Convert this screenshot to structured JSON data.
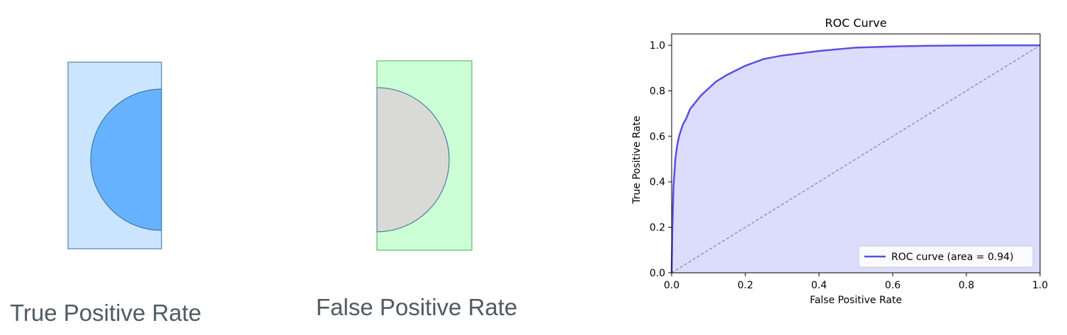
{
  "panels": {
    "tpr": {
      "caption": "True Positive Rate",
      "rect_fill": "#cce5ff",
      "rect_stroke": "#2e6f96",
      "half_fill": "#66b2ff",
      "half_stroke": "#2e6f96"
    },
    "fpr": {
      "caption": "False Positive Rate",
      "rect_fill": "#ccffd6",
      "rect_stroke": "#4aa84a",
      "half_fill": "#d9d9d6",
      "half_stroke": "#2e6f96"
    }
  },
  "chart_data": {
    "type": "line",
    "title": "ROC Curve",
    "xlabel": "False Positive Rate",
    "ylabel": "True Positive Rate",
    "xlim": [
      0.0,
      1.0
    ],
    "ylim": [
      0.0,
      1.05
    ],
    "xticks": [
      "0.0",
      "0.2",
      "0.4",
      "0.6",
      "0.8",
      "1.0"
    ],
    "yticks": [
      "0.0",
      "0.2",
      "0.4",
      "0.6",
      "0.8",
      "1.0"
    ],
    "grid": false,
    "legend_position": "lower-right",
    "series": [
      {
        "name": "ROC curve (area = 0.94)",
        "color": "#5b4fe0",
        "fill": "#dcdcfc",
        "x": [
          0.0,
          0.002,
          0.005,
          0.01,
          0.015,
          0.02,
          0.03,
          0.04,
          0.05,
          0.06,
          0.08,
          0.1,
          0.12,
          0.15,
          0.2,
          0.25,
          0.3,
          0.4,
          0.5,
          0.6,
          0.7,
          0.8,
          0.9,
          1.0
        ],
        "y": [
          0.0,
          0.2,
          0.38,
          0.5,
          0.56,
          0.6,
          0.65,
          0.68,
          0.72,
          0.74,
          0.78,
          0.81,
          0.84,
          0.87,
          0.91,
          0.94,
          0.955,
          0.975,
          0.99,
          0.995,
          0.998,
          0.999,
          1.0,
          1.0
        ]
      }
    ],
    "diagonal": {
      "x": [
        0,
        1
      ],
      "y": [
        0,
        1
      ],
      "color": "#888888",
      "style": "dashed"
    }
  }
}
